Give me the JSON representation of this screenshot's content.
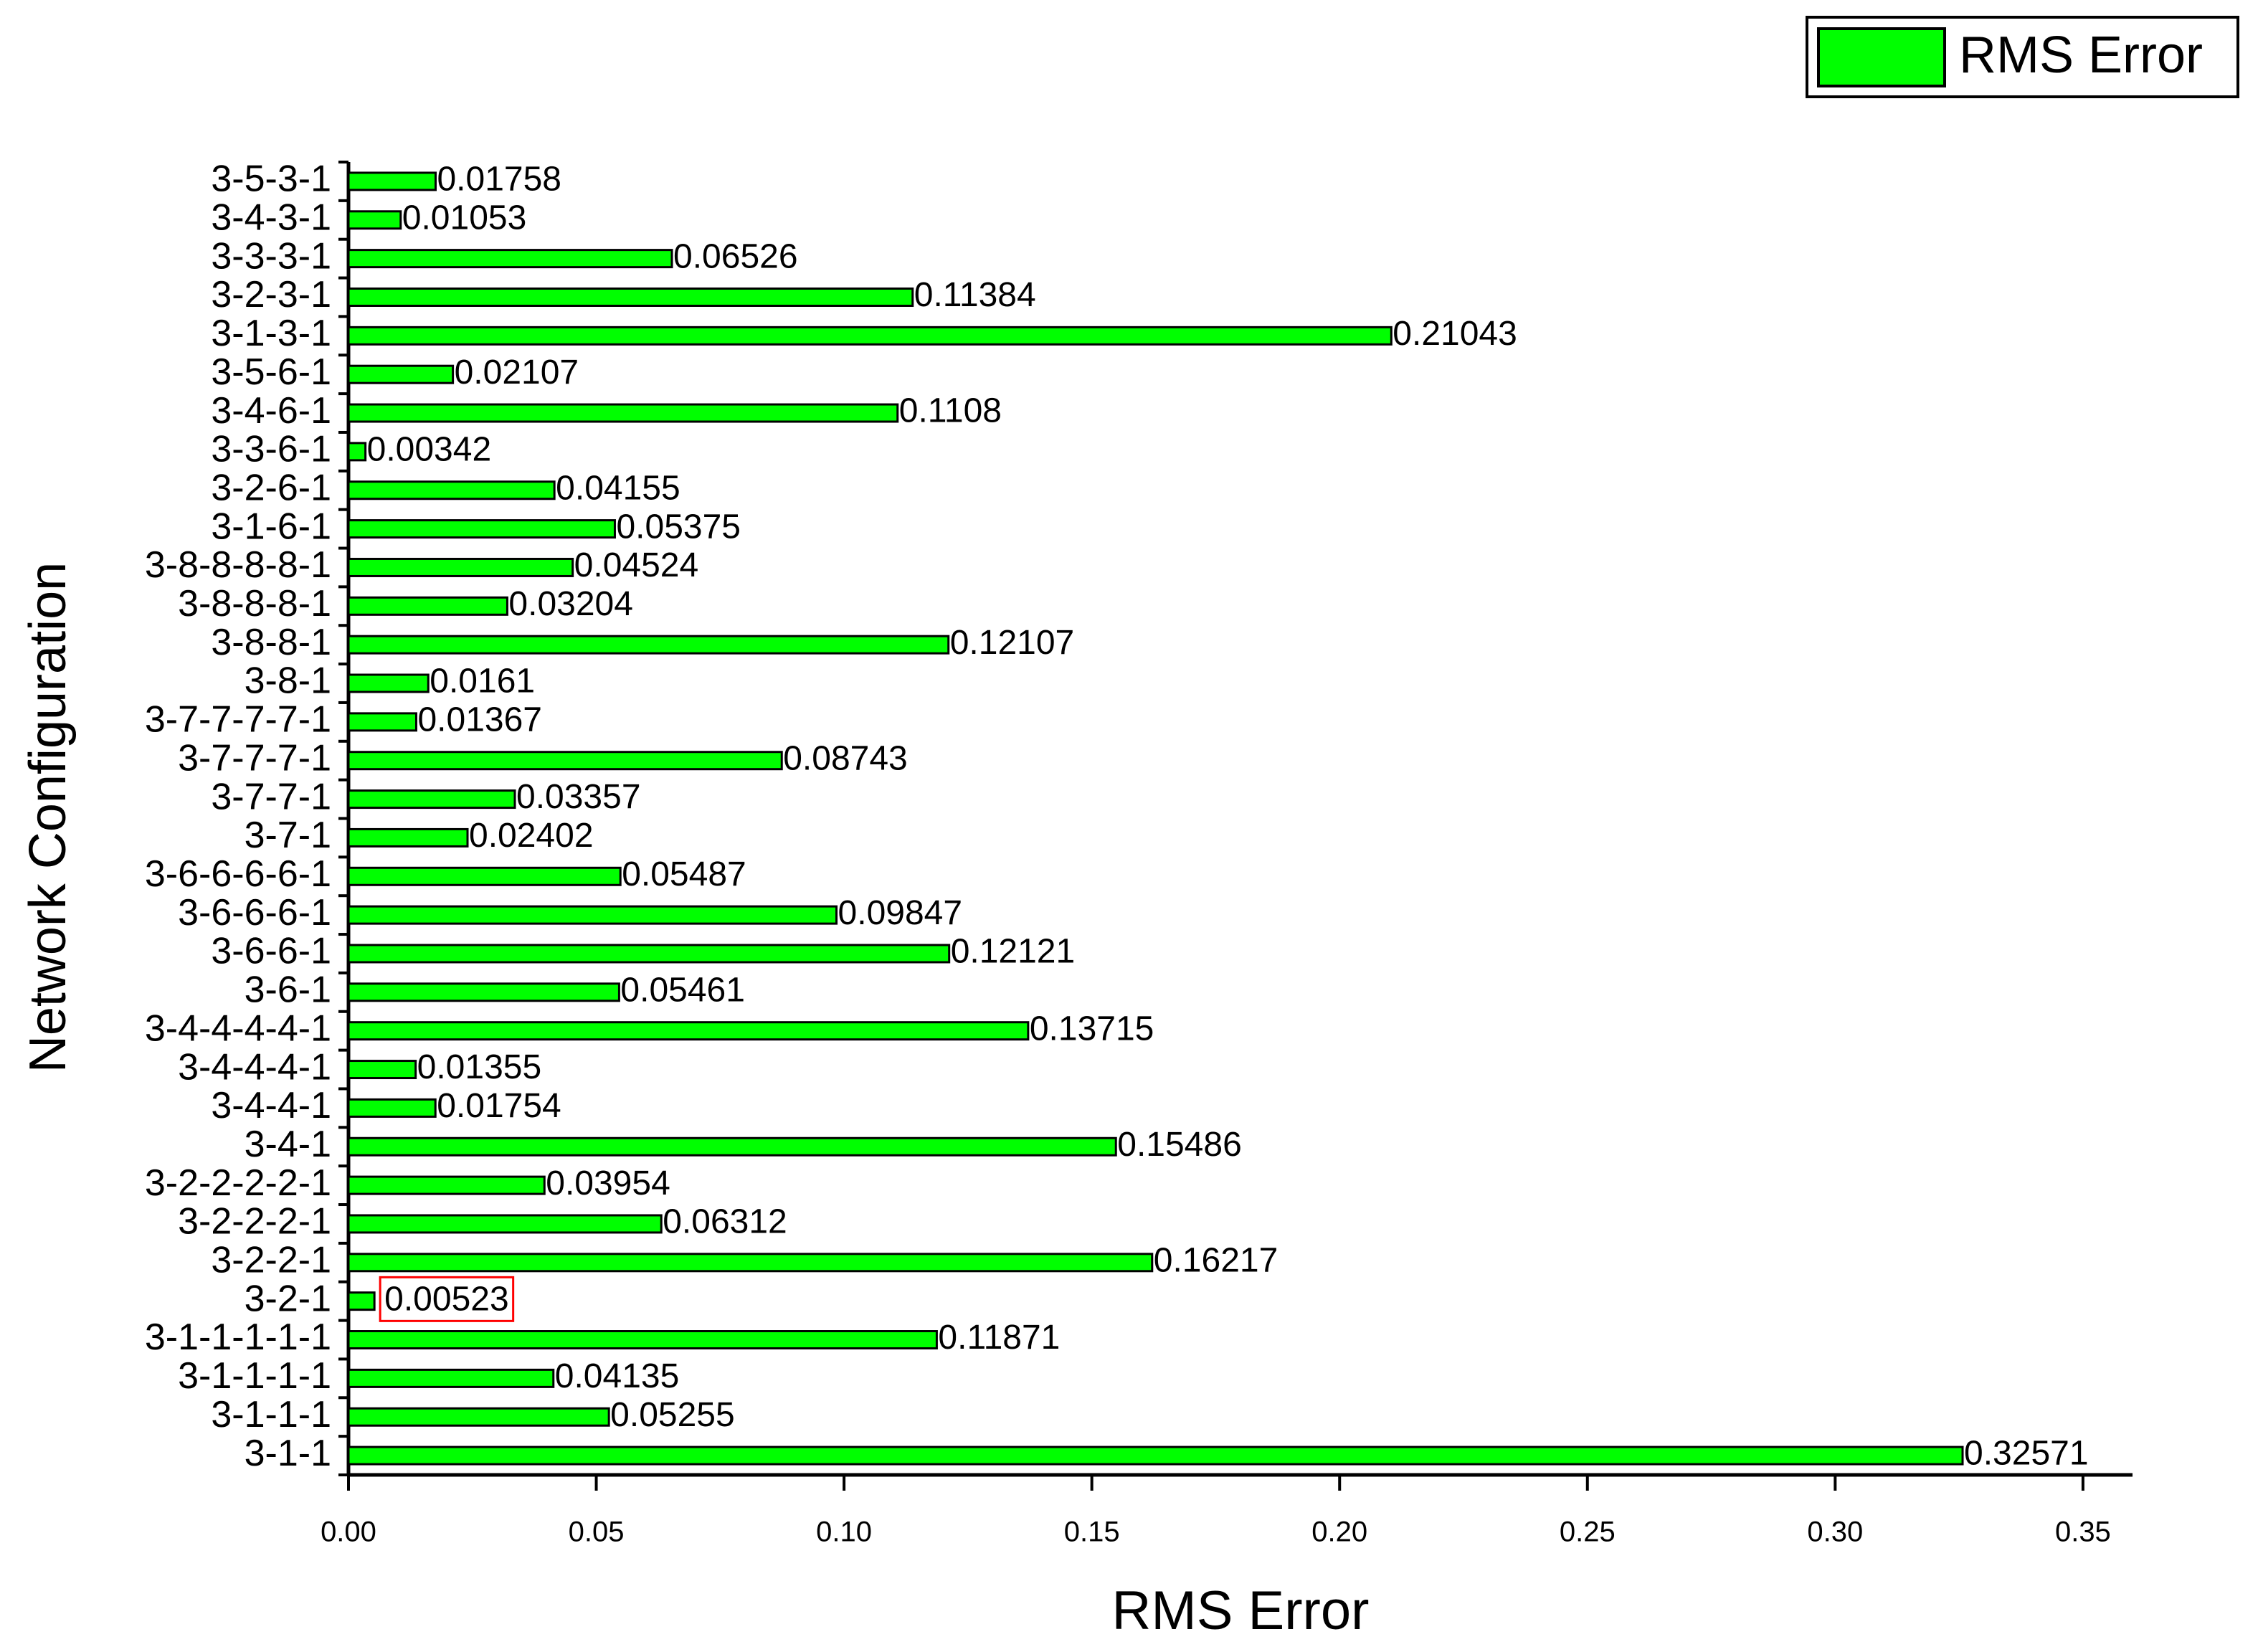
{
  "chart_data": {
    "type": "bar",
    "orientation": "horizontal",
    "x_label": "RMS Error",
    "y_label": "Network Configuration",
    "categories": [
      "3-1-1",
      "3-1-1-1",
      "3-1-1-1-1",
      "3-1-1-1-1-1",
      "3-2-1",
      "3-2-2-1",
      "3-2-2-2-1",
      "3-2-2-2-2-1",
      "3-4-1",
      "3-4-4-1",
      "3-4-4-4-1",
      "3-4-4-4-4-1",
      "3-6-1",
      "3-6-6-1",
      "3-6-6-6-1",
      "3-6-6-6-6-1",
      "3-7-1",
      "3-7-7-1",
      "3-7-7-7-1",
      "3-7-7-7-7-1",
      "3-8-1",
      "3-8-8-1",
      "3-8-8-8-1",
      "3-8-8-8-8-1",
      "3-1-6-1",
      "3-2-6-1",
      "3-3-6-1",
      "3-4-6-1",
      "3-5-6-1",
      "3-1-3-1",
      "3-2-3-1",
      "3-3-3-1",
      "3-4-3-1",
      "3-5-3-1"
    ],
    "series": [
      {
        "name": "RMS Error",
        "color": "#00ff00",
        "values": [
          0.32571,
          0.05255,
          0.04135,
          0.11871,
          0.00523,
          0.16217,
          0.06312,
          0.03954,
          0.15486,
          0.01754,
          0.01355,
          0.13715,
          0.05461,
          0.12121,
          0.09847,
          0.05487,
          0.02402,
          0.03357,
          0.08743,
          0.01367,
          0.0161,
          0.12107,
          0.03204,
          0.04524,
          0.05375,
          0.04155,
          0.00342,
          0.1108,
          0.02107,
          0.21043,
          0.11384,
          0.06526,
          0.01053,
          0.01758
        ]
      }
    ],
    "highlight_index": 4,
    "highlight_color": "#ff0000",
    "xlim": [
      0,
      0.36
    ],
    "xticks": [
      {
        "value": 0,
        "label": "0.00"
      },
      0.05,
      {
        "value": 0.1,
        "label": "0.10"
      },
      0.15,
      {
        "value": 0.2,
        "label": "0.20"
      },
      0.25,
      {
        "value": 0.3,
        "label": "0.30"
      },
      0.35
    ],
    "legend": "top-right"
  }
}
